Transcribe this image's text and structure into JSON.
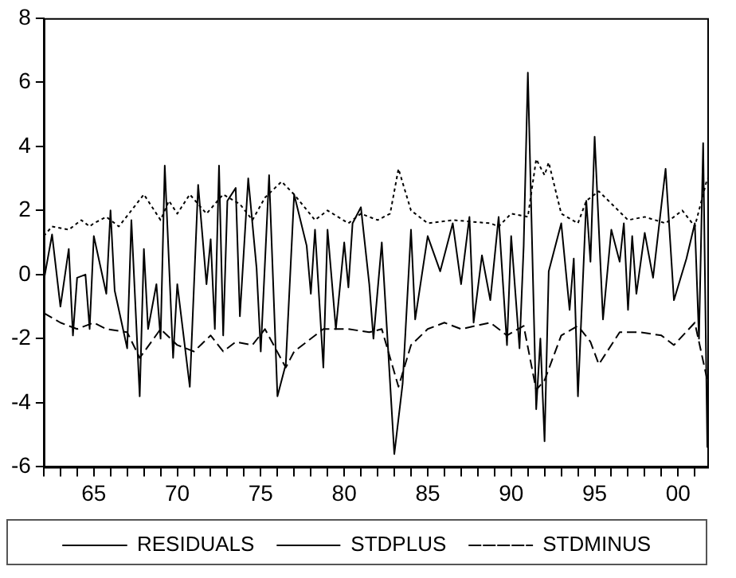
{
  "chart_data": {
    "type": "line",
    "xlim": [
      1962,
      2001.75
    ],
    "ylim": [
      -6,
      8
    ],
    "yticks": [
      -6,
      -4,
      -2,
      0,
      2,
      4,
      6,
      8
    ],
    "xticks": [
      {
        "value": 1962,
        "label": null
      },
      {
        "value": 1963,
        "label": null
      },
      {
        "value": 1964,
        "label": null
      },
      {
        "value": 1965,
        "label": "65"
      },
      {
        "value": 1966,
        "label": null
      },
      {
        "value": 1967,
        "label": null
      },
      {
        "value": 1968,
        "label": null
      },
      {
        "value": 1969,
        "label": null
      },
      {
        "value": 1970,
        "label": "70"
      },
      {
        "value": 1971,
        "label": null
      },
      {
        "value": 1972,
        "label": null
      },
      {
        "value": 1973,
        "label": null
      },
      {
        "value": 1974,
        "label": null
      },
      {
        "value": 1975,
        "label": "75"
      },
      {
        "value": 1976,
        "label": null
      },
      {
        "value": 1977,
        "label": null
      },
      {
        "value": 1978,
        "label": null
      },
      {
        "value": 1979,
        "label": null
      },
      {
        "value": 1980,
        "label": "80"
      },
      {
        "value": 1981,
        "label": null
      },
      {
        "value": 1982,
        "label": null
      },
      {
        "value": 1983,
        "label": null
      },
      {
        "value": 1984,
        "label": null
      },
      {
        "value": 1985,
        "label": "85"
      },
      {
        "value": 1986,
        "label": null
      },
      {
        "value": 1987,
        "label": null
      },
      {
        "value": 1988,
        "label": null
      },
      {
        "value": 1989,
        "label": null
      },
      {
        "value": 1990,
        "label": "90"
      },
      {
        "value": 1991,
        "label": null
      },
      {
        "value": 1992,
        "label": null
      },
      {
        "value": 1993,
        "label": null
      },
      {
        "value": 1994,
        "label": null
      },
      {
        "value": 1995,
        "label": "95"
      },
      {
        "value": 1996,
        "label": null
      },
      {
        "value": 1997,
        "label": null
      },
      {
        "value": 1998,
        "label": null
      },
      {
        "value": 1999,
        "label": null
      },
      {
        "value": 2000,
        "label": "00"
      },
      {
        "value": 2001,
        "label": null
      }
    ],
    "grid": false,
    "legend": "bottom",
    "marker": "none",
    "series": [
      {
        "name": "RESIDUALS",
        "color": "#000000",
        "line_style": "solid",
        "x": [
          1962,
          1962.5,
          1963,
          1963.5,
          1963.75,
          1964,
          1964.5,
          1964.75,
          1965,
          1965.75,
          1966,
          1966.25,
          1967,
          1967.25,
          1967.75,
          1968,
          1968.25,
          1968.75,
          1969,
          1969.25,
          1969.75,
          1970,
          1970.75,
          1971.25,
          1971.75,
          1972,
          1972.25,
          1972.5,
          1972.75,
          1973,
          1973.5,
          1973.75,
          1974.25,
          1974.75,
          1975,
          1975.5,
          1976,
          1976.5,
          1977,
          1977.75,
          1978,
          1978.25,
          1978.75,
          1979,
          1979.5,
          1980,
          1980.25,
          1980.5,
          1981,
          1981.5,
          1981.75,
          1982.25,
          1983,
          1983.5,
          1984,
          1984.25,
          1985,
          1985.75,
          1986,
          1986.5,
          1987,
          1987.5,
          1987.75,
          1988.25,
          1988.75,
          1989.25,
          1989.75,
          1990,
          1990.5,
          1990.75,
          1991,
          1991.5,
          1991.75,
          1992,
          1992.25,
          1993,
          1993.5,
          1993.75,
          1994,
          1994.5,
          1994.75,
          1995,
          1995.5,
          1996,
          1996.5,
          1996.75,
          1997,
          1997.25,
          1997.5,
          1998,
          1998.5,
          1999.25,
          1999.75,
          2000.5,
          2001,
          2001.25,
          2001.5,
          2001.75
        ],
        "values": [
          -0.2,
          1.25,
          -1.0,
          0.8,
          -1.9,
          -0.1,
          0,
          -1.7,
          1.2,
          -0.6,
          2.0,
          -0.5,
          -2.3,
          1.7,
          -3.8,
          0.8,
          -1.7,
          -0.3,
          -2.0,
          3.4,
          -2.6,
          -0.3,
          -3.5,
          2.8,
          -0.3,
          1.1,
          -1.7,
          3.4,
          -1.9,
          2.3,
          2.7,
          -1.3,
          3.0,
          0.2,
          -2.4,
          3.1,
          -3.8,
          -2.8,
          2.5,
          0.9,
          -0.6,
          1.4,
          -2.9,
          1.4,
          -1.7,
          1.0,
          -0.4,
          1.6,
          2.1,
          -0.3,
          -2.0,
          1.0,
          -5.6,
          -3.4,
          1.4,
          -1.4,
          1.2,
          0.1,
          0.6,
          1.6,
          -0.3,
          1.8,
          -1.5,
          0.6,
          -0.8,
          1.8,
          -2.2,
          1.2,
          -2.3,
          0.9,
          6.3,
          -4.2,
          -2.0,
          -5.2,
          0.1,
          1.6,
          -1.1,
          0.5,
          -3.8,
          2.3,
          0.4,
          4.3,
          -1.4,
          1.4,
          0.4,
          1.6,
          -1.1,
          1.2,
          -0.6,
          1.3,
          -0.1,
          3.3,
          -0.8,
          0.5,
          1.6,
          -2.0,
          4.1,
          -5.4
        ]
      },
      {
        "name": "STDPLUS",
        "color": "#000000",
        "line_style": "dotted",
        "x": [
          1962,
          1962.5,
          1963.5,
          1964.25,
          1964.75,
          1965,
          1965.75,
          1966.5,
          1967.25,
          1968,
          1969,
          1969.5,
          1970,
          1970.75,
          1971.75,
          1972.25,
          1972.75,
          1973.75,
          1974.5,
          1975.25,
          1976.25,
          1977,
          1978.25,
          1979,
          1980.25,
          1981,
          1982,
          1982.75,
          1983.25,
          1984,
          1985,
          1986.5,
          1988.75,
          1989.25,
          1990,
          1991,
          1991.5,
          1992,
          1992.25,
          1993,
          1994,
          1994.5,
          1995.25,
          1997,
          1998,
          1999.25,
          2000.25,
          2001,
          2001.75
        ],
        "values": [
          1.2,
          1.5,
          1.4,
          1.7,
          1.5,
          1.6,
          1.8,
          1.5,
          2.0,
          2.5,
          1.7,
          2.3,
          1.9,
          2.5,
          1.9,
          2.2,
          2.5,
          2.2,
          1.7,
          2.4,
          2.9,
          2.5,
          1.7,
          2.0,
          1.6,
          1.9,
          1.7,
          1.9,
          3.3,
          2.0,
          1.6,
          1.7,
          1.6,
          1.5,
          1.9,
          1.8,
          3.6,
          3.1,
          3.5,
          1.9,
          1.6,
          2.3,
          2.6,
          1.7,
          1.8,
          1.6,
          2.0,
          1.5,
          3.0
        ]
      },
      {
        "name": "STDMINUS",
        "color": "#000000",
        "line_style": "dashed",
        "x": [
          1962,
          1963,
          1964,
          1965,
          1965.75,
          1967,
          1967.75,
          1969,
          1970,
          1971,
          1972,
          1972.75,
          1973.5,
          1974.5,
          1975.25,
          1976.5,
          1977,
          1978.75,
          1980.25,
          1981.5,
          1982.25,
          1983.25,
          1984,
          1985,
          1986,
          1987,
          1988.75,
          1989.75,
          1990.75,
          1991.5,
          1992,
          1993,
          1994,
          1994.75,
          1995.25,
          1996.5,
          1997.75,
          1999,
          1999.75,
          2001,
          2001.75
        ],
        "values": [
          -1.2,
          -1.5,
          -1.7,
          -1.5,
          -1.7,
          -1.8,
          -2.6,
          -1.7,
          -2.2,
          -2.4,
          -1.9,
          -2.4,
          -2.1,
          -2.2,
          -1.7,
          -2.9,
          -2.4,
          -1.7,
          -1.7,
          -1.8,
          -1.7,
          -3.5,
          -2.2,
          -1.7,
          -1.5,
          -1.7,
          -1.5,
          -1.9,
          -1.6,
          -3.6,
          -3.3,
          -1.9,
          -1.6,
          -2.1,
          -2.8,
          -1.8,
          -1.8,
          -1.9,
          -2.2,
          -1.5,
          -3.3
        ]
      }
    ]
  }
}
